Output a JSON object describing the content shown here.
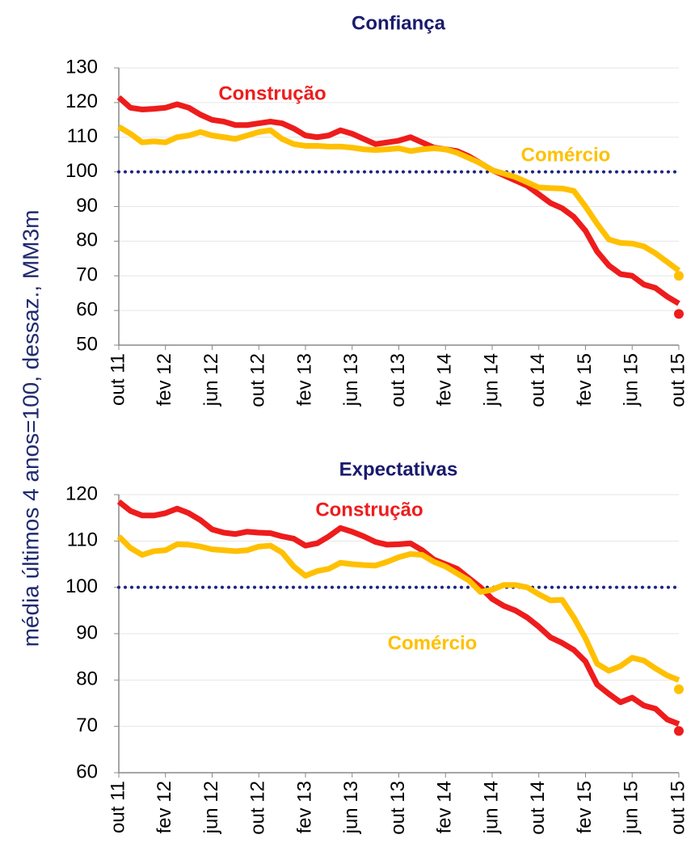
{
  "y_label": "média últimos 4 anos=100, dessaz., MM3m",
  "chart_data": [
    {
      "type": "line",
      "title": "Confiança",
      "categories": [
        "out 11",
        null,
        null,
        null,
        "fev 12",
        null,
        null,
        null,
        "jun 12",
        null,
        null,
        null,
        "out 12",
        null,
        null,
        null,
        "fev 13",
        null,
        null,
        null,
        "jun 13",
        null,
        null,
        null,
        "out 13",
        null,
        null,
        null,
        "fev 14",
        null,
        null,
        null,
        "jun 14",
        null,
        null,
        null,
        "out 14",
        null,
        null,
        null,
        "fev 15",
        null,
        null,
        null,
        "jun 15",
        null,
        null,
        null,
        "out 15"
      ],
      "ylim": [
        50,
        130
      ],
      "yticks": [
        50,
        60,
        70,
        80,
        90,
        100,
        110,
        120,
        130
      ],
      "reference_line": 100,
      "series": [
        {
          "name": "Construção",
          "color": "#ee1c1c",
          "end_point": 59,
          "values": [
            121.5,
            118.5,
            118,
            118.2,
            118.5,
            119.5,
            118.5,
            116.5,
            115,
            114.5,
            113.5,
            113.5,
            114,
            114.5,
            114,
            112.5,
            110.5,
            110,
            110.5,
            112,
            111,
            109.5,
            108,
            108.5,
            109,
            110,
            108.5,
            107,
            106.5,
            106,
            104.5,
            102.5,
            100.5,
            99,
            97.5,
            96,
            93.5,
            91,
            89.5,
            87,
            83,
            77,
            73,
            70.5,
            70,
            67.5,
            66.5,
            64,
            62
          ]
        },
        {
          "name": "Comércio",
          "color": "#ffc000",
          "end_point": 70,
          "values": [
            113,
            111,
            108.5,
            108.8,
            108.5,
            110,
            110.5,
            111.5,
            110.5,
            110,
            109.5,
            110.5,
            111.5,
            112,
            109.5,
            108,
            107.5,
            107.5,
            107.3,
            107.3,
            107,
            106.5,
            106.3,
            106.5,
            106.8,
            106,
            106.5,
            106.8,
            106.5,
            105.5,
            104,
            102.5,
            100.5,
            99.5,
            98.5,
            97,
            95.5,
            95.3,
            95.2,
            94.5,
            90,
            85,
            80.5,
            79.5,
            79.3,
            78.5,
            76.5,
            74,
            71.5
          ]
        }
      ]
    },
    {
      "type": "line",
      "title": "Expectativas",
      "categories": [
        "out 11",
        null,
        null,
        null,
        "fev 12",
        null,
        null,
        null,
        "jun 12",
        null,
        null,
        null,
        "out 12",
        null,
        null,
        null,
        "fev 13",
        null,
        null,
        null,
        "jun 13",
        null,
        null,
        null,
        "out 13",
        null,
        null,
        null,
        "fev 14",
        null,
        null,
        null,
        "jun 14",
        null,
        null,
        null,
        "out 14",
        null,
        null,
        null,
        "fev 15",
        null,
        null,
        null,
        "jun 15",
        null,
        null,
        null,
        "out 15"
      ],
      "ylim": [
        60,
        120
      ],
      "yticks": [
        60,
        70,
        80,
        90,
        100,
        110,
        120
      ],
      "reference_line": 100,
      "series": [
        {
          "name": "Construção",
          "color": "#ee1c1c",
          "end_point": 69,
          "values": [
            118.5,
            116.5,
            115.5,
            115.5,
            116,
            117,
            116,
            114.5,
            112.5,
            111.8,
            111.5,
            112,
            111.8,
            111.7,
            111,
            110.5,
            109,
            109.5,
            111,
            112.8,
            112,
            111,
            109.8,
            109.2,
            109.3,
            109.5,
            108,
            106,
            105,
            104,
            102,
            100,
            97.5,
            96,
            95,
            93.5,
            91.5,
            89.2,
            88,
            86.5,
            84,
            79,
            77,
            75.2,
            76.2,
            74.5,
            73.8,
            71.5,
            70.5
          ]
        },
        {
          "name": "Comércio",
          "color": "#ffc000",
          "end_point": 78,
          "values": [
            111,
            108.5,
            107,
            107.8,
            108,
            109.3,
            109.2,
            108.8,
            108.2,
            108,
            107.8,
            108,
            108.8,
            109,
            107.5,
            104.5,
            102.5,
            103.5,
            104,
            105.3,
            105,
            104.8,
            104.7,
            105.5,
            106.5,
            107.2,
            107,
            105.5,
            104.5,
            103,
            101.5,
            99,
            99.5,
            100.5,
            100.5,
            100,
            98.5,
            97.2,
            97.3,
            93.5,
            89,
            83.5,
            82,
            83,
            84.8,
            84.2,
            82.5,
            81,
            80
          ]
        }
      ]
    }
  ]
}
